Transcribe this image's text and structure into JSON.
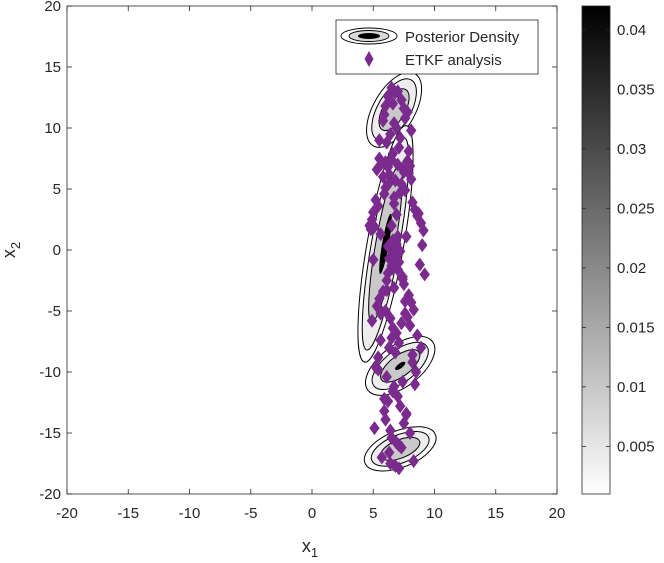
{
  "chart_data": {
    "type": "scatter",
    "xlabel": "x",
    "xlabel_sub": "1",
    "ylabel": "x",
    "ylabel_sub": "2",
    "xlim": [
      -20,
      20
    ],
    "ylim": [
      -20,
      20
    ],
    "xticks": [
      -20,
      -15,
      -10,
      -5,
      0,
      5,
      10,
      15,
      20
    ],
    "yticks": [
      -20,
      -15,
      -10,
      -5,
      0,
      5,
      10,
      15,
      20
    ],
    "grid": false,
    "legend": {
      "placement": "top-right",
      "entries": [
        "Posterior Density",
        "ETKF analysis"
      ]
    },
    "colorbar": {
      "range": [
        0.001,
        0.042
      ],
      "ticks": [
        "0.005",
        "0.01",
        "0.015",
        "0.02",
        "0.025",
        "0.03",
        "0.035",
        "0.04"
      ],
      "tick_values": [
        0.005,
        0.01,
        0.015,
        0.02,
        0.025,
        0.03,
        0.035,
        0.04
      ],
      "colormap": "gray (white to black)"
    },
    "series": [
      {
        "name": "Posterior Density",
        "kind": "filled contour",
        "modes": [
          {
            "cx": 6.7,
            "cy": 11.5,
            "angle": -60,
            "levels": [
              {
                "rx": 3.4,
                "ry": 1.7
              },
              {
                "rx": 2.8,
                "ry": 1.35
              },
              {
                "rx": 1.9,
                "ry": 0.9
              }
            ]
          },
          {
            "cx": 6.0,
            "cy": 0.5,
            "angle": -80,
            "levels": [
              {
                "rx": 9.8,
                "ry": 1.5
              },
              {
                "rx": 8.8,
                "ry": 1.15
              },
              {
                "rx": 6.5,
                "ry": 0.8
              },
              {
                "rx": 2.5,
                "ry": 0.28
              }
            ]
          },
          {
            "cx": 7.2,
            "cy": -9.5,
            "angle": -37,
            "levels": [
              {
                "rx": 3.3,
                "ry": 1.7
              },
              {
                "rx": 2.7,
                "ry": 1.3
              },
              {
                "rx": 1.9,
                "ry": 0.85
              },
              {
                "rx": 0.5,
                "ry": 0.2
              }
            ]
          },
          {
            "cx": 7.2,
            "cy": -16.3,
            "angle": -22,
            "levels": [
              {
                "rx": 3.1,
                "ry": 1.5
              },
              {
                "rx": 2.5,
                "ry": 1.15
              },
              {
                "rx": 1.7,
                "ry": 0.75
              }
            ]
          }
        ],
        "level_fills": [
          "#ffffff",
          "#ededed",
          "#c9c9c9",
          "#000000"
        ]
      },
      {
        "name": "ETKF analysis",
        "kind": "scatter",
        "marker": "diamond",
        "color": "#7b2a8e",
        "x": [
          6.5,
          7.0,
          6.2,
          6.8,
          7.3,
          6.0,
          7.5,
          5.9,
          7.6,
          6.7,
          6.9,
          6.4,
          7.2,
          6.1,
          7.1,
          6.6,
          5.5,
          7.8,
          8.0,
          5.3,
          5.7,
          7.9,
          5.8,
          8.1,
          6.2,
          7.4,
          6.5,
          7.0,
          6.3,
          6.8,
          7.3,
          6.0,
          7.6,
          5.9,
          6.7,
          5.2,
          8.2,
          5.4,
          8.4,
          5.0,
          8.6,
          4.9,
          8.9,
          5.1,
          9.1,
          5.6,
          7.7,
          6.6,
          6.9,
          6.4,
          7.2,
          6.8,
          6.3,
          7.1,
          6.5,
          7.0,
          6.2,
          7.4,
          6.1,
          7.5,
          6.7,
          5.8,
          7.9,
          5.5,
          8.1,
          5.3,
          8.3,
          5.6,
          7.8,
          4.9,
          9.2,
          5.0,
          9.0,
          4.8,
          8.7,
          4.7,
          8.8,
          6.0,
          7.6,
          6.4,
          7.3,
          6.6,
          6.9,
          6.5,
          7.1,
          6.3,
          6.8,
          5.4,
          8.2,
          5.2,
          8.5,
          6.1,
          7.4,
          6.7,
          6.6,
          7.0,
          6.2,
          7.2,
          8.6,
          8.9,
          5.9,
          7.7,
          6.0,
          7.5,
          5.1,
          8.0,
          6.5,
          6.9,
          7.3,
          6.3,
          5.7,
          8.3,
          6.8,
          7.1,
          6.4,
          6.6,
          7.8,
          5.8,
          8.1,
          5.5,
          7.9,
          6.0,
          7.5,
          6.3,
          7.2,
          6.7,
          6.9,
          6.5,
          7.0,
          6.2,
          6.8,
          6.6,
          7.4,
          6.1,
          7.6,
          5.7,
          8.0,
          5.6,
          8.2,
          5.4,
          8.4,
          5.9,
          7.7,
          6.4,
          7.1
        ],
        "y": [
          13.3,
          13.0,
          12.6,
          12.9,
          12.3,
          11.8,
          11.6,
          11.1,
          10.8,
          10.4,
          10.0,
          9.5,
          9.2,
          8.8,
          8.4,
          7.9,
          7.5,
          7.3,
          6.9,
          6.6,
          7.1,
          6.3,
          6.0,
          5.8,
          6.8,
          6.7,
          7.4,
          7.0,
          6.2,
          5.7,
          5.4,
          5.1,
          4.9,
          4.6,
          4.3,
          4.1,
          3.9,
          3.6,
          3.3,
          3.1,
          2.8,
          2.5,
          2.2,
          1.9,
          1.6,
          1.3,
          1.1,
          0.8,
          0.5,
          0.2,
          -0.1,
          -0.4,
          -0.7,
          -1.0,
          -1.3,
          -1.6,
          -1.9,
          -2.2,
          -2.5,
          -2.8,
          -3.1,
          -3.4,
          -3.7,
          -4.0,
          -4.3,
          -4.6,
          -4.9,
          -5.2,
          -5.5,
          -5.8,
          -2.0,
          -0.8,
          0.4,
          1.7,
          3.0,
          2.0,
          -1.2,
          -5.0,
          -5.2,
          -5.6,
          -6.0,
          -6.4,
          -6.8,
          -7.2,
          -7.6,
          -8.0,
          -8.4,
          -8.8,
          -9.2,
          -9.6,
          -10.0,
          -10.4,
          -10.8,
          -11.2,
          -11.6,
          -12.0,
          -12.4,
          -12.8,
          -7.0,
          -8.0,
          -13.2,
          -13.5,
          -13.9,
          -14.2,
          -14.6,
          -15.0,
          -15.4,
          -15.8,
          -16.2,
          -16.6,
          -17.0,
          -17.3,
          -17.7,
          -17.9,
          -17.5,
          12.0,
          11.3,
          10.6,
          9.8,
          9.0,
          8.1,
          7.2,
          6.4,
          5.5,
          4.7,
          3.8,
          2.9,
          2.0,
          1.1,
          0.3,
          -0.6,
          -1.5,
          -2.4,
          -3.3,
          -4.2,
          -5.1,
          -6.2,
          -7.4,
          -8.6,
          -9.8,
          -11.0,
          -12.2,
          -13.4,
          -14.8,
          -16.0
        ]
      }
    ]
  }
}
